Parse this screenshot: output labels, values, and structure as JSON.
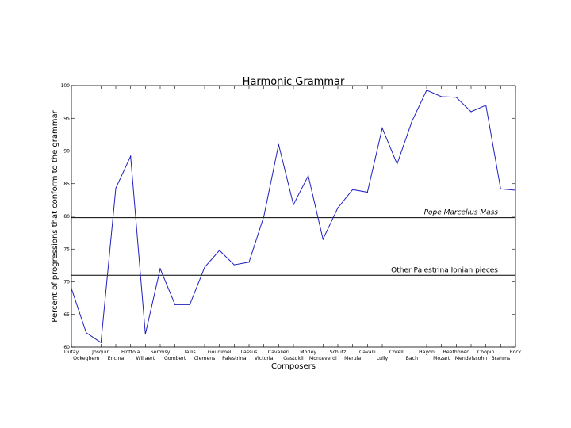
{
  "chart_data": {
    "type": "line",
    "title": "Harmonic Grammar",
    "xlabel": "Composers",
    "ylabel": "Percent of progressions that conform to the grammar",
    "ylim": [
      60,
      100
    ],
    "yticks": [
      60,
      65,
      70,
      75,
      80,
      85,
      90,
      95,
      100
    ],
    "grid": false,
    "line_color": "#2020c0",
    "categories": [
      "Dufay",
      "Ockeghem",
      "Josquin",
      "Encina",
      "Frottola",
      "Willaert",
      "Sermisy",
      "Gombert",
      "Tallis",
      "Clemens",
      "Goudimel",
      "Palestrina",
      "Lassus",
      "Victoria",
      "Cavalieri",
      "Gastoldi",
      "Morley",
      "Monteverdi",
      "Schutz",
      "Merula",
      "Cavalli",
      "Lully",
      "Corelli",
      "Bach",
      "Haydn",
      "Mozart",
      "Beethoven",
      "Mendelssohn",
      "Chopin",
      "Brahms",
      "Rock"
    ],
    "series": [
      {
        "values": [
          69.0,
          62.2,
          60.7,
          84.3,
          89.2,
          62.0,
          72.0,
          66.5,
          66.5,
          72.2,
          74.8,
          72.6,
          73.0,
          80.0,
          91.0,
          81.8,
          86.2,
          76.5,
          81.3,
          84.1,
          83.7,
          93.5,
          88.0,
          94.5,
          99.3,
          98.3,
          98.2,
          96.0,
          97.0,
          84.2,
          84.0
        ]
      }
    ],
    "reference_lines": [
      {
        "y": 79.8,
        "label": "Pope Marcellus Mass"
      },
      {
        "y": 71.0,
        "label": "Other Palestrina Ionian pieces"
      }
    ]
  }
}
